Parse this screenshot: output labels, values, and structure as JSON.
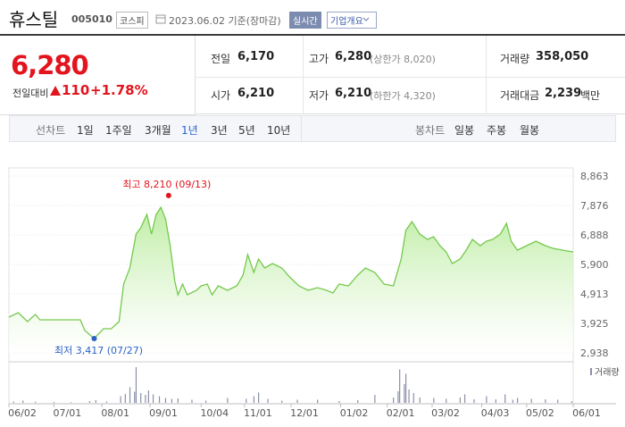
{
  "header": {
    "name": "휴스틸",
    "code": "005010",
    "market": "코스피",
    "date": "2023.06.02 기준(장마감)",
    "realtime": "실시간",
    "company_info": "기업개요"
  },
  "quote": {
    "price": "6,280",
    "change_label": "전일대비",
    "change": "110",
    "change_rate": "+1.78%"
  },
  "stats": [
    {
      "label": "전일",
      "value": "6,170"
    },
    {
      "label": "고가",
      "value": "6,280",
      "sub": "(상한가 8,020)"
    },
    {
      "label": "거래량",
      "value": "358,050"
    },
    {
      "label": "시가",
      "value": "6,210"
    },
    {
      "label": "저가",
      "value": "6,210",
      "sub": "(하한가 4,320)"
    },
    {
      "label": "거래대금",
      "value": "2,239",
      "unit": "백만"
    }
  ],
  "tabs": {
    "line_label": "선차트",
    "line": [
      "1일",
      "1주일",
      "3개월",
      "1년",
      "3년",
      "5년",
      "10년"
    ],
    "active": 3,
    "candle_label": "봉차트",
    "candle": [
      "일봉",
      "주봉",
      "월봉"
    ]
  },
  "chart_data": {
    "type": "line",
    "color": "#74c94d",
    "x": [
      0,
      6,
      12,
      17,
      20,
      29,
      46,
      49,
      55,
      61,
      66,
      71,
      74,
      78,
      82,
      85,
      89,
      92,
      95,
      98,
      101,
      104,
      107,
      109,
      112,
      115,
      121,
      124,
      128,
      131,
      135,
      141,
      147,
      151,
      154,
      158,
      161,
      165,
      170,
      176,
      181,
      187,
      193,
      199,
      205,
      209,
      213,
      219,
      225,
      230,
      236,
      242,
      248,
      253,
      256,
      260,
      265,
      270,
      274,
      278,
      282,
      286,
      291,
      295,
      299,
      304,
      308,
      312,
      317,
      321,
      324,
      328,
      334,
      340,
      346,
      351,
      357,
      364
    ],
    "values": [
      4135,
      4284,
      3985,
      4225,
      4045,
      4045,
      4045,
      3686,
      3417,
      3746,
      3746,
      3985,
      5242,
      5780,
      6917,
      7127,
      7576,
      6917,
      7576,
      7815,
      7426,
      6528,
      5332,
      4883,
      5242,
      4883,
      5032,
      5182,
      5242,
      4883,
      5182,
      5032,
      5182,
      5541,
      6229,
      5631,
      6080,
      5780,
      5930,
      5780,
      5481,
      5182,
      5032,
      5122,
      5032,
      4943,
      5242,
      5182,
      5541,
      5780,
      5631,
      5242,
      5182,
      6080,
      7037,
      7336,
      6917,
      6738,
      6828,
      6528,
      6319,
      5930,
      6080,
      6379,
      6738,
      6528,
      6678,
      6738,
      6917,
      7276,
      6678,
      6379,
      6528,
      6678,
      6528,
      6438,
      6379,
      6319
    ],
    "xlim": [
      0,
      364
    ],
    "xticks": [
      {
        "value": 0,
        "label": "06/02"
      },
      {
        "value": 29,
        "label": "07/01"
      },
      {
        "value": 60,
        "label": "08/01"
      },
      {
        "value": 91,
        "label": "09/01"
      },
      {
        "value": 124,
        "label": "10/04"
      },
      {
        "value": 152,
        "label": "11/01"
      },
      {
        "value": 182,
        "label": "12/01"
      },
      {
        "value": 214,
        "label": "01/02"
      },
      {
        "value": 244,
        "label": "02/01"
      },
      {
        "value": 273,
        "label": "03/02"
      },
      {
        "value": 305,
        "label": "04/03"
      },
      {
        "value": 334,
        "label": "05/02"
      },
      {
        "value": 364,
        "label": "06/01"
      }
    ],
    "ylim": [
      2938,
      8863
    ],
    "yticks": [
      {
        "value": 2938,
        "label": "2,938"
      },
      {
        "value": 3925,
        "label": "3,925"
      },
      {
        "value": 4913,
        "label": "4,913"
      },
      {
        "value": 5900,
        "label": "5,900"
      },
      {
        "value": 6888,
        "label": "6,888"
      },
      {
        "value": 7876,
        "label": "7,876"
      },
      {
        "value": 8863,
        "label": "8,863"
      }
    ],
    "grid": true,
    "annotations": [
      {
        "text": "최고 8,210 (09/13)",
        "value": 8210,
        "x": 103,
        "color": "#e3141d"
      },
      {
        "text": "최저 3,417 (07/27)",
        "value": 3417,
        "x": 55,
        "color": "#2b62c4"
      }
    ],
    "volume": {
      "name": "거래량",
      "color": "#8a8fa8",
      "x": [
        3,
        9,
        17,
        29,
        40,
        52,
        56,
        63,
        72,
        75,
        78,
        81,
        82,
        85,
        88,
        90,
        93,
        97,
        101,
        105,
        109,
        118,
        127,
        141,
        153,
        158,
        161,
        167,
        176,
        186,
        199,
        213,
        225,
        236,
        248,
        251,
        252,
        255,
        256,
        258,
        261,
        265,
        274,
        282,
        291,
        294,
        300,
        308,
        314,
        320,
        325,
        328,
        337,
        346,
        354,
        363
      ],
      "values": [
        300000,
        500000,
        250000,
        200000,
        150000,
        400000,
        600000,
        300000,
        1500000,
        2000000,
        3500000,
        2500000,
        8000000,
        2200000,
        1800000,
        2800000,
        1900000,
        1500000,
        1100000,
        900000,
        1000000,
        700000,
        500000,
        1100000,
        900000,
        1500000,
        2300000,
        900000,
        500000,
        700000,
        700000,
        400000,
        600000,
        1800000,
        1200000,
        2600000,
        7500000,
        4200000,
        6500000,
        3000000,
        2200000,
        1200000,
        1100000,
        900000,
        1200000,
        1900000,
        800000,
        1500000,
        800000,
        1900000,
        700000,
        1100000,
        900000,
        800000,
        700000,
        358050
      ]
    }
  }
}
